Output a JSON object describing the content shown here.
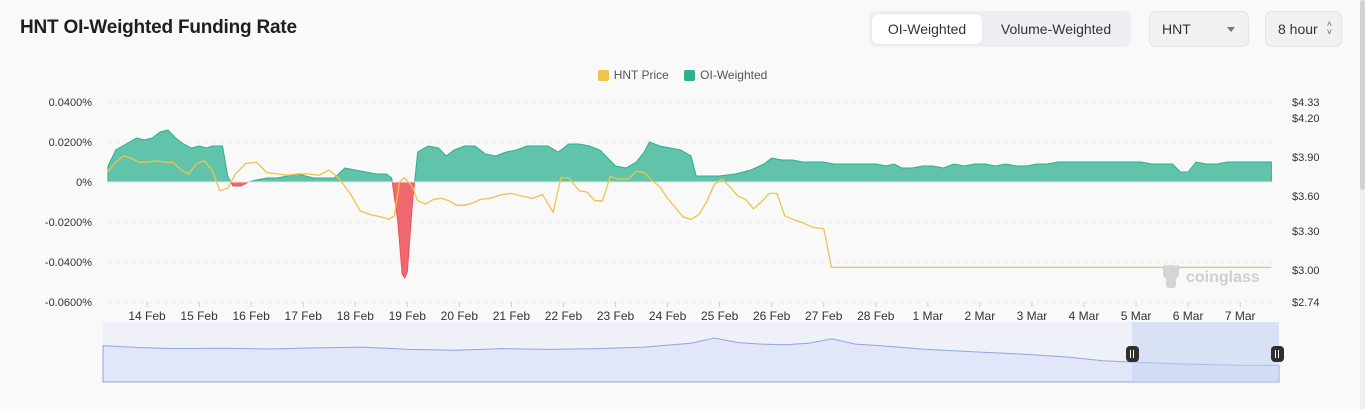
{
  "header": {
    "title": "HNT OI-Weighted Funding Rate",
    "tabs": [
      {
        "label": "OI-Weighted",
        "active": true
      },
      {
        "label": "Volume-Weighted",
        "active": false
      }
    ],
    "symbol_select": {
      "value": "HNT"
    },
    "interval_select": {
      "value": "8 hour"
    }
  },
  "colors": {
    "oi_positive": "#2db08d",
    "oi_negative": "#ee4f57",
    "price": "#f2c14e",
    "navigator": "#8fa6e0"
  },
  "watermark": "coinglass",
  "chart_data": {
    "type": "area",
    "legend": [
      {
        "name": "HNT Price",
        "color": "#f2c14e"
      },
      {
        "name": "OI-Weighted",
        "color": "#2db08d"
      }
    ],
    "x_ticks": [
      "14 Feb",
      "15 Feb",
      "16 Feb",
      "17 Feb",
      "18 Feb",
      "19 Feb",
      "20 Feb",
      "21 Feb",
      "22 Feb",
      "23 Feb",
      "24 Feb",
      "25 Feb",
      "26 Feb",
      "27 Feb",
      "28 Feb",
      "1 Mar",
      "2 Mar",
      "3 Mar",
      "4 Mar",
      "5 Mar",
      "6 Mar",
      "7 Mar"
    ],
    "x_range": [
      13.25,
      35.65
    ],
    "y_left": {
      "ticks": [
        0.04,
        0.02,
        0,
        -0.02,
        -0.04,
        -0.06
      ],
      "tick_labels": [
        "0.0400%",
        "0.0200%",
        "0%",
        "-0.0200%",
        "-0.0400%",
        "-0.0600%"
      ],
      "range": [
        -0.06,
        0.04
      ]
    },
    "y_right": {
      "tick_labels": [
        "$4.33",
        "$4.20",
        "$3.90",
        "$3.60",
        "$3.30",
        "$3.00",
        "$2.74"
      ],
      "ticks": [
        4.33,
        4.2,
        3.9,
        3.6,
        3.3,
        3.0,
        2.74
      ]
    },
    "series": [
      {
        "name": "OI-Weighted",
        "unit": "%",
        "points": [
          [
            13.25,
            0.008
          ],
          [
            13.4,
            0.016
          ],
          [
            13.6,
            0.019
          ],
          [
            13.8,
            0.022
          ],
          [
            13.95,
            0.021
          ],
          [
            14.1,
            0.022
          ],
          [
            14.25,
            0.025
          ],
          [
            14.4,
            0.026
          ],
          [
            14.55,
            0.022
          ],
          [
            14.7,
            0.019
          ],
          [
            14.85,
            0.017
          ],
          [
            15.0,
            0.018
          ],
          [
            15.15,
            0.017
          ],
          [
            15.25,
            0.018
          ],
          [
            15.45,
            0.018
          ],
          [
            15.55,
            0.003
          ],
          [
            15.65,
            -0.002
          ],
          [
            15.8,
            -0.002
          ],
          [
            15.95,
            0.0
          ],
          [
            16.1,
            0.001
          ],
          [
            16.3,
            0.002
          ],
          [
            16.5,
            0.002
          ],
          [
            16.7,
            0.003
          ],
          [
            16.9,
            0.004
          ],
          [
            17.05,
            0.003
          ],
          [
            17.2,
            0.002
          ],
          [
            17.4,
            0.002
          ],
          [
            17.6,
            0.002
          ],
          [
            17.8,
            0.007
          ],
          [
            18.0,
            0.006
          ],
          [
            18.2,
            0.005
          ],
          [
            18.4,
            0.004
          ],
          [
            18.6,
            0.004
          ],
          [
            18.7,
            0.002
          ],
          [
            18.82,
            -0.02
          ],
          [
            18.9,
            -0.046
          ],
          [
            18.95,
            -0.048
          ],
          [
            19.0,
            -0.045
          ],
          [
            19.1,
            -0.01
          ],
          [
            19.2,
            0.015
          ],
          [
            19.4,
            0.018
          ],
          [
            19.6,
            0.017
          ],
          [
            19.75,
            0.013
          ],
          [
            19.9,
            0.016
          ],
          [
            20.1,
            0.018
          ],
          [
            20.3,
            0.018
          ],
          [
            20.5,
            0.014
          ],
          [
            20.7,
            0.013
          ],
          [
            20.9,
            0.015
          ],
          [
            21.1,
            0.016
          ],
          [
            21.3,
            0.018
          ],
          [
            21.5,
            0.018
          ],
          [
            21.7,
            0.018
          ],
          [
            21.9,
            0.015
          ],
          [
            22.1,
            0.019
          ],
          [
            22.3,
            0.019
          ],
          [
            22.5,
            0.018
          ],
          [
            22.7,
            0.016
          ],
          [
            22.85,
            0.012
          ],
          [
            23.0,
            0.008
          ],
          [
            23.2,
            0.007
          ],
          [
            23.4,
            0.01
          ],
          [
            23.55,
            0.015
          ],
          [
            23.65,
            0.02
          ],
          [
            23.85,
            0.018
          ],
          [
            24.05,
            0.017
          ],
          [
            24.25,
            0.016
          ],
          [
            24.45,
            0.013
          ],
          [
            24.55,
            0.003
          ],
          [
            24.8,
            0.003
          ],
          [
            25.0,
            0.003
          ],
          [
            25.3,
            0.004
          ],
          [
            25.6,
            0.006
          ],
          [
            25.85,
            0.009
          ],
          [
            26.0,
            0.012
          ],
          [
            26.2,
            0.011
          ],
          [
            26.4,
            0.011
          ],
          [
            26.6,
            0.01
          ],
          [
            26.8,
            0.01
          ],
          [
            27.0,
            0.01
          ],
          [
            27.2,
            0.009
          ],
          [
            27.4,
            0.009
          ],
          [
            27.6,
            0.009
          ],
          [
            27.8,
            0.009
          ],
          [
            28.0,
            0.009
          ],
          [
            28.2,
            0.008
          ],
          [
            28.35,
            0.009
          ],
          [
            28.5,
            0.007
          ],
          [
            28.7,
            0.007
          ],
          [
            28.9,
            0.008
          ],
          [
            29.1,
            0.008
          ],
          [
            29.3,
            0.007
          ],
          [
            29.5,
            0.009
          ],
          [
            29.7,
            0.008
          ],
          [
            29.9,
            0.009
          ],
          [
            30.1,
            0.009
          ],
          [
            30.3,
            0.008
          ],
          [
            30.5,
            0.009
          ],
          [
            30.7,
            0.008
          ],
          [
            30.9,
            0.008
          ],
          [
            31.1,
            0.009
          ],
          [
            31.3,
            0.009
          ],
          [
            31.5,
            0.01
          ],
          [
            31.7,
            0.01
          ],
          [
            31.9,
            0.01
          ],
          [
            32.1,
            0.01
          ],
          [
            32.3,
            0.01
          ],
          [
            32.5,
            0.01
          ],
          [
            32.7,
            0.01
          ],
          [
            32.9,
            0.01
          ],
          [
            33.1,
            0.01
          ],
          [
            33.3,
            0.009
          ],
          [
            33.5,
            0.009
          ],
          [
            33.7,
            0.009
          ],
          [
            33.85,
            0.005
          ],
          [
            34.0,
            0.005
          ],
          [
            34.15,
            0.01
          ],
          [
            34.35,
            0.009
          ],
          [
            34.55,
            0.009
          ],
          [
            34.75,
            0.01
          ],
          [
            34.95,
            0.01
          ],
          [
            35.15,
            0.01
          ],
          [
            35.35,
            0.01
          ],
          [
            35.6,
            0.01
          ]
        ]
      },
      {
        "name": "HNT Price",
        "unit": "$",
        "points": [
          [
            13.25,
            3.79
          ],
          [
            13.4,
            3.86
          ],
          [
            13.55,
            3.91
          ],
          [
            13.7,
            3.89
          ],
          [
            13.85,
            3.86
          ],
          [
            14.0,
            3.86
          ],
          [
            14.2,
            3.87
          ],
          [
            14.35,
            3.86
          ],
          [
            14.5,
            3.86
          ],
          [
            14.65,
            3.8
          ],
          [
            14.8,
            3.77
          ],
          [
            14.95,
            3.85
          ],
          [
            15.1,
            3.87
          ],
          [
            15.25,
            3.8
          ],
          [
            15.4,
            3.64
          ],
          [
            15.55,
            3.66
          ],
          [
            15.7,
            3.77
          ],
          [
            15.9,
            3.85
          ],
          [
            16.1,
            3.86
          ],
          [
            16.3,
            3.78
          ],
          [
            16.5,
            3.77
          ],
          [
            16.7,
            3.76
          ],
          [
            16.9,
            3.77
          ],
          [
            17.1,
            3.77
          ],
          [
            17.3,
            3.76
          ],
          [
            17.5,
            3.8
          ],
          [
            17.7,
            3.73
          ],
          [
            17.9,
            3.62
          ],
          [
            18.1,
            3.47
          ],
          [
            18.3,
            3.44
          ],
          [
            18.5,
            3.42
          ],
          [
            18.65,
            3.4
          ],
          [
            18.75,
            3.43
          ],
          [
            18.85,
            3.71
          ],
          [
            18.95,
            3.74
          ],
          [
            19.1,
            3.67
          ],
          [
            19.2,
            3.56
          ],
          [
            19.35,
            3.53
          ],
          [
            19.5,
            3.57
          ],
          [
            19.65,
            3.58
          ],
          [
            19.8,
            3.56
          ],
          [
            19.95,
            3.52
          ],
          [
            20.1,
            3.52
          ],
          [
            20.25,
            3.54
          ],
          [
            20.4,
            3.57
          ],
          [
            20.6,
            3.58
          ],
          [
            20.8,
            3.61
          ],
          [
            21.0,
            3.62
          ],
          [
            21.2,
            3.6
          ],
          [
            21.4,
            3.58
          ],
          [
            21.6,
            3.61
          ],
          [
            21.8,
            3.46
          ],
          [
            21.95,
            3.74
          ],
          [
            22.1,
            3.74
          ],
          [
            22.3,
            3.64
          ],
          [
            22.45,
            3.63
          ],
          [
            22.6,
            3.56
          ],
          [
            22.75,
            3.56
          ],
          [
            22.9,
            3.75
          ],
          [
            23.05,
            3.73
          ],
          [
            23.25,
            3.73
          ],
          [
            23.4,
            3.79
          ],
          [
            23.55,
            3.78
          ],
          [
            23.7,
            3.72
          ],
          [
            23.85,
            3.67
          ],
          [
            24.0,
            3.58
          ],
          [
            24.15,
            3.5
          ],
          [
            24.3,
            3.42
          ],
          [
            24.45,
            3.4
          ],
          [
            24.6,
            3.44
          ],
          [
            24.75,
            3.55
          ],
          [
            24.9,
            3.69
          ],
          [
            25.05,
            3.73
          ],
          [
            25.2,
            3.67
          ],
          [
            25.35,
            3.6
          ],
          [
            25.5,
            3.57
          ],
          [
            25.65,
            3.49
          ],
          [
            25.8,
            3.55
          ],
          [
            25.95,
            3.62
          ],
          [
            26.1,
            3.62
          ],
          [
            26.25,
            3.43
          ],
          [
            26.4,
            3.4
          ],
          [
            26.6,
            3.37
          ],
          [
            26.8,
            3.33
          ],
          [
            27.0,
            3.32
          ],
          [
            27.15,
            3.02
          ],
          [
            27.4,
            3.02
          ],
          [
            28.0,
            3.02
          ],
          [
            29.0,
            3.02
          ],
          [
            30.0,
            3.02
          ],
          [
            31.0,
            3.02
          ],
          [
            32.0,
            3.02
          ],
          [
            33.0,
            3.02
          ],
          [
            34.0,
            3.02
          ],
          [
            35.0,
            3.02
          ],
          [
            35.6,
            3.02
          ]
        ]
      }
    ],
    "navigator": {
      "points": [
        [
          0,
          0.8
        ],
        [
          0.03,
          0.75
        ],
        [
          0.06,
          0.72
        ],
        [
          0.1,
          0.73
        ],
        [
          0.14,
          0.71
        ],
        [
          0.18,
          0.74
        ],
        [
          0.22,
          0.76
        ],
        [
          0.26,
          0.7
        ],
        [
          0.3,
          0.68
        ],
        [
          0.34,
          0.72
        ],
        [
          0.38,
          0.7
        ],
        [
          0.42,
          0.72
        ],
        [
          0.46,
          0.76
        ],
        [
          0.5,
          0.86
        ],
        [
          0.52,
          1.0
        ],
        [
          0.54,
          0.88
        ],
        [
          0.56,
          0.84
        ],
        [
          0.58,
          0.82
        ],
        [
          0.6,
          0.86
        ],
        [
          0.62,
          0.98
        ],
        [
          0.64,
          0.84
        ],
        [
          0.66,
          0.8
        ],
        [
          0.7,
          0.7
        ],
        [
          0.74,
          0.64
        ],
        [
          0.78,
          0.58
        ],
        [
          0.82,
          0.5
        ],
        [
          0.85,
          0.4
        ],
        [
          0.88,
          0.36
        ],
        [
          0.91,
          0.32
        ],
        [
          0.94,
          0.3
        ],
        [
          0.97,
          0.28
        ],
        [
          1.0,
          0.28
        ]
      ],
      "selection_start": 0.875
    }
  }
}
